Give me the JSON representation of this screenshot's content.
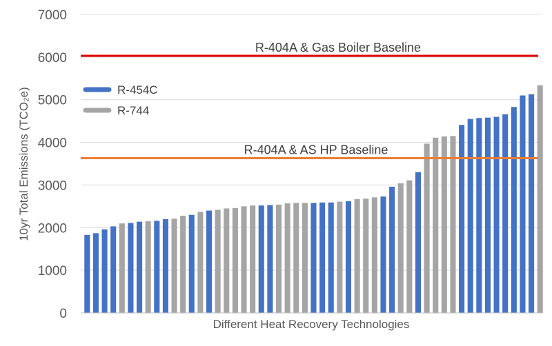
{
  "chart_data": {
    "type": "bar",
    "title": "",
    "xlabel": "Different Heat Recovery Technologies",
    "ylabel": "10yr Total Emissions (TCO₂e)",
    "ylim": [
      0,
      7000
    ],
    "yticks": [
      0,
      1000,
      2000,
      3000,
      4000,
      5000,
      6000,
      7000
    ],
    "grid": "horizontal",
    "legend_position": "left",
    "series": [
      {
        "name": "R-454C",
        "color": "#4472C4"
      },
      {
        "name": "R-744",
        "color": "#A5A5A5"
      }
    ],
    "reference_lines": [
      {
        "label": "R-404A & Gas Boiler Baseline",
        "value": 6030,
        "color": "#E00000"
      },
      {
        "label": "R-404A & AS HP Baseline",
        "value": 3630,
        "color": "#ED7D31"
      }
    ],
    "bars": [
      {
        "series": "R-454C",
        "value": 1830
      },
      {
        "series": "R-454C",
        "value": 1870
      },
      {
        "series": "R-454C",
        "value": 1960
      },
      {
        "series": "R-454C",
        "value": 2030
      },
      {
        "series": "R-744",
        "value": 2100
      },
      {
        "series": "R-454C",
        "value": 2110
      },
      {
        "series": "R-454C",
        "value": 2140
      },
      {
        "series": "R-744",
        "value": 2150
      },
      {
        "series": "R-454C",
        "value": 2160
      },
      {
        "series": "R-454C",
        "value": 2200
      },
      {
        "series": "R-744",
        "value": 2210
      },
      {
        "series": "R-744",
        "value": 2280
      },
      {
        "series": "R-454C",
        "value": 2300
      },
      {
        "series": "R-744",
        "value": 2370
      },
      {
        "series": "R-454C",
        "value": 2400
      },
      {
        "series": "R-744",
        "value": 2420
      },
      {
        "series": "R-744",
        "value": 2450
      },
      {
        "series": "R-744",
        "value": 2460
      },
      {
        "series": "R-744",
        "value": 2500
      },
      {
        "series": "R-744",
        "value": 2520
      },
      {
        "series": "R-454C",
        "value": 2520
      },
      {
        "series": "R-454C",
        "value": 2530
      },
      {
        "series": "R-744",
        "value": 2540
      },
      {
        "series": "R-744",
        "value": 2570
      },
      {
        "series": "R-744",
        "value": 2580
      },
      {
        "series": "R-744",
        "value": 2580
      },
      {
        "series": "R-454C",
        "value": 2580
      },
      {
        "series": "R-454C",
        "value": 2590
      },
      {
        "series": "R-454C",
        "value": 2590
      },
      {
        "series": "R-744",
        "value": 2610
      },
      {
        "series": "R-454C",
        "value": 2620
      },
      {
        "series": "R-744",
        "value": 2670
      },
      {
        "series": "R-744",
        "value": 2680
      },
      {
        "series": "R-744",
        "value": 2710
      },
      {
        "series": "R-454C",
        "value": 2730
      },
      {
        "series": "R-454C",
        "value": 2960
      },
      {
        "series": "R-744",
        "value": 3040
      },
      {
        "series": "R-744",
        "value": 3110
      },
      {
        "series": "R-454C",
        "value": 3300
      },
      {
        "series": "R-744",
        "value": 3970
      },
      {
        "series": "R-744",
        "value": 4110
      },
      {
        "series": "R-744",
        "value": 4140
      },
      {
        "series": "R-744",
        "value": 4150
      },
      {
        "series": "R-454C",
        "value": 4410
      },
      {
        "series": "R-454C",
        "value": 4550
      },
      {
        "series": "R-454C",
        "value": 4570
      },
      {
        "series": "R-454C",
        "value": 4580
      },
      {
        "series": "R-454C",
        "value": 4600
      },
      {
        "series": "R-454C",
        "value": 4660
      },
      {
        "series": "R-454C",
        "value": 4830
      },
      {
        "series": "R-454C",
        "value": 5100
      },
      {
        "series": "R-454C",
        "value": 5130
      },
      {
        "series": "R-744",
        "value": 5340
      }
    ]
  }
}
